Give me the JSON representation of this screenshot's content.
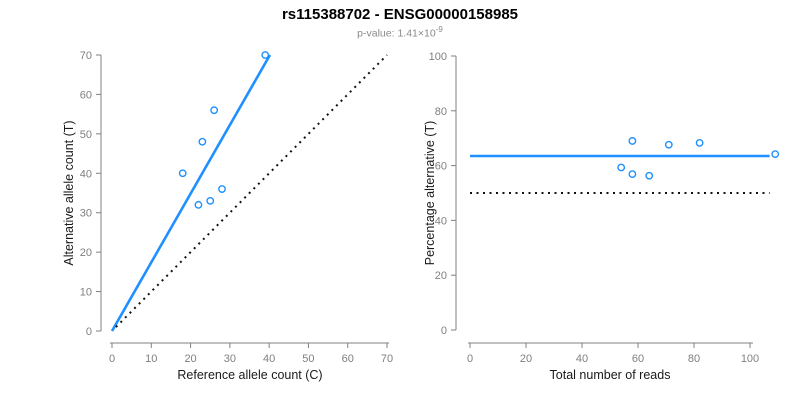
{
  "title": "rs115388702 - ENSG00000158985",
  "subtitle": {
    "text": "p-value: 1.41×10",
    "exponent": "-9"
  },
  "colors": {
    "accent": "#1E90FF",
    "axis": "#808080",
    "tick_text": "#7F7F7F",
    "label_text": "#1A1A1A",
    "dotted": "#111111",
    "subtitle_text": "#8A8A8A"
  },
  "chart_data": [
    {
      "type": "scatter",
      "panel": "allele-counts",
      "xlabel": "Reference allele count (C)",
      "ylabel": "Alternative allele count (T)",
      "xlim": [
        0,
        70
      ],
      "ylim": [
        0,
        70
      ],
      "xticks": [
        0,
        10,
        20,
        30,
        40,
        50,
        60,
        70
      ],
      "yticks": [
        0,
        10,
        20,
        30,
        40,
        50,
        60,
        70
      ],
      "grid": false,
      "points": [
        [
          18,
          40
        ],
        [
          22,
          32
        ],
        [
          23,
          48
        ],
        [
          25,
          33
        ],
        [
          26,
          56
        ],
        [
          28,
          36
        ],
        [
          39,
          70
        ]
      ],
      "lines": [
        {
          "name": "fit-line",
          "style": "solid",
          "x": [
            0,
            40.2
          ],
          "y": [
            0,
            70
          ]
        },
        {
          "name": "identity-line",
          "style": "dotted",
          "x": [
            1,
            70
          ],
          "y": [
            1,
            70
          ]
        }
      ]
    },
    {
      "type": "scatter",
      "panel": "percentage-vs-depth",
      "xlabel": "Total number of reads",
      "ylabel": "Percentage alternative (T)",
      "xlim": [
        0,
        110
      ],
      "ylim": [
        0,
        100
      ],
      "xticks": [
        0,
        20,
        40,
        60,
        80,
        100
      ],
      "yticks": [
        0,
        20,
        40,
        60,
        80,
        100
      ],
      "grid": false,
      "points": [
        [
          54,
          59.3
        ],
        [
          58,
          69
        ],
        [
          58,
          56.9
        ],
        [
          64,
          56.3
        ],
        [
          71,
          67.6
        ],
        [
          82,
          68.3
        ],
        [
          109,
          64.2
        ]
      ],
      "lines": [
        {
          "name": "mean-percentage-line",
          "style": "solid",
          "x": [
            0,
            107
          ],
          "y": [
            63.5,
            63.5
          ]
        },
        {
          "name": "fifty-percent-line",
          "style": "dotted",
          "x": [
            0,
            107
          ],
          "y": [
            50,
            50
          ]
        }
      ]
    }
  ]
}
